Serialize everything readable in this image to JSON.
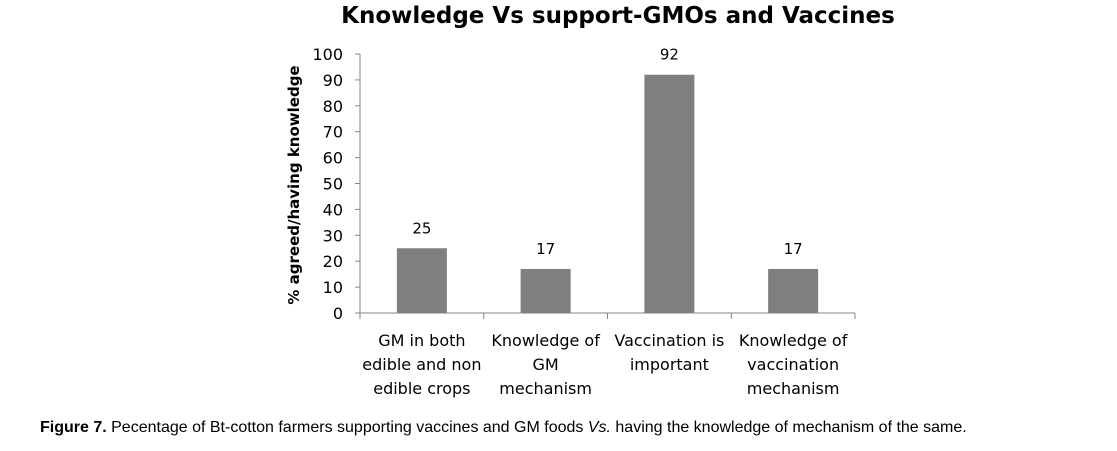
{
  "chart_data": {
    "type": "bar",
    "title": "Knowledge Vs support-GMOs and Vaccines",
    "ylabel": "% agreed/having knowledge",
    "xlabel": "",
    "ylim": [
      0,
      100
    ],
    "yticks": [
      0,
      10,
      20,
      30,
      40,
      50,
      60,
      70,
      80,
      90,
      100
    ],
    "categories": [
      [
        "GM in both",
        "edible and non",
        "edible crops"
      ],
      [
        "Knowledge of",
        "GM",
        "mechanism"
      ],
      [
        "Vaccination is",
        "important"
      ],
      [
        "Knowledge of",
        "vaccination",
        "mechanism"
      ]
    ],
    "values": [
      25,
      17,
      92,
      17
    ],
    "data_labels": [
      "25",
      "17",
      "92",
      "17"
    ],
    "bar_color": "#7f7f7f",
    "grid": false,
    "legend": "none"
  },
  "caption": {
    "label": "Figure 7.",
    "text_before": " Pecentage of Bt-cotton farmers supporting vaccines and GM foods ",
    "vs": "Vs.",
    "text_after": " having the knowledge of mechanism of the same."
  }
}
